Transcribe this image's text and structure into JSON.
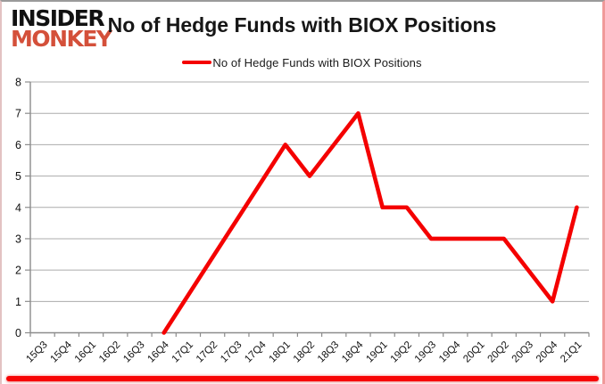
{
  "logo": {
    "line1": "INSIDER",
    "line2": "MONKEY"
  },
  "header": {
    "title": "No of Hedge Funds with BIOX Positions"
  },
  "legend": {
    "label": "No of Hedge Funds with BIOX Positions",
    "marker_color": "#f40000"
  },
  "colors": {
    "series_red": "#f40000",
    "logo_red": "#d4503a",
    "gridline": "#acacac",
    "axis": "#8c8c8c",
    "tick_label": "#111111",
    "bottom_bar": "#f70505"
  },
  "chart_data": {
    "type": "line",
    "title": "No of Hedge Funds with BIOX Positions",
    "xlabel": "",
    "ylabel": "",
    "categories": [
      "15Q3",
      "15Q4",
      "16Q1",
      "16Q2",
      "16Q3",
      "16Q4",
      "17Q1",
      "17Q2",
      "17Q3",
      "17Q4",
      "18Q1",
      "18Q2",
      "18Q3",
      "18Q4",
      "19Q1",
      "19Q2",
      "19Q3",
      "19Q4",
      "20Q1",
      "20Q2",
      "20Q3",
      "20Q4",
      "21Q1"
    ],
    "series": [
      {
        "name": "No of Hedge Funds with BIOX Positions",
        "color": "#f40000",
        "values": [
          null,
          null,
          null,
          null,
          null,
          0,
          1.2,
          2.4,
          3.6,
          4.8,
          6,
          5,
          6,
          7,
          4,
          4,
          3,
          3,
          3,
          3,
          2,
          1,
          4
        ]
      }
    ],
    "ylim": [
      0,
      8
    ],
    "yticks": [
      0,
      1,
      2,
      3,
      4,
      5,
      6,
      7,
      8
    ],
    "grid": true,
    "legend_position": "top",
    "x_tick_label_rotation_deg": -45
  }
}
